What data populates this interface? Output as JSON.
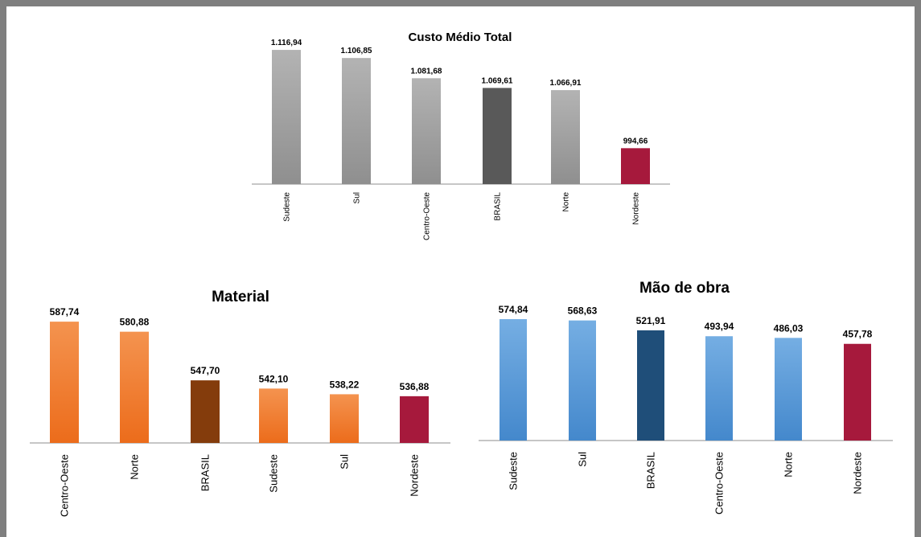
{
  "chart_data": [
    {
      "type": "bar",
      "title": "Custo Médio Total",
      "categories": [
        "Sudeste",
        "Sul",
        "Centro-Oeste",
        "BRASIL",
        "Norte",
        "Nordeste"
      ],
      "values": [
        1116.94,
        1106.85,
        1081.68,
        1069.61,
        1066.91,
        994.66
      ],
      "labels": [
        "1.116,94",
        "1.106,85",
        "1.081,68",
        "1.069,61",
        "1.066,91",
        "994,66"
      ],
      "colors": [
        "#a6a6a6",
        "#a6a6a6",
        "#a6a6a6",
        "#595959",
        "#a6a6a6",
        "#a6193c"
      ],
      "ylim": [
        950,
        1130
      ],
      "grid": false
    },
    {
      "type": "bar",
      "title": "Material",
      "categories": [
        "Centro-Oeste",
        "Norte",
        "BRASIL",
        "Sudeste",
        "Sul",
        "Nordeste"
      ],
      "values": [
        587.74,
        580.88,
        547.7,
        542.1,
        538.22,
        536.88
      ],
      "labels": [
        "587,74",
        "580,88",
        "547,70",
        "542,10",
        "538,22",
        "536,88"
      ],
      "colors": [
        "#f07b2b",
        "#f07b2b",
        "#843c0c",
        "#f07b2b",
        "#f07b2b",
        "#a6193c"
      ],
      "ylim": [
        505,
        590
      ],
      "grid": false
    },
    {
      "type": "bar",
      "title": "Mão de obra",
      "categories": [
        "Sudeste",
        "Sul",
        "BRASIL",
        "Centro-Oeste",
        "Norte",
        "Nordeste"
      ],
      "values": [
        574.84,
        568.63,
        521.91,
        493.94,
        486.03,
        457.78
      ],
      "labels": [
        "574,84",
        "568,63",
        "521,91",
        "493,94",
        "486,03",
        "457,78"
      ],
      "colors": [
        "#5b9bd5",
        "#5b9bd5",
        "#1f4e79",
        "#5b9bd5",
        "#5b9bd5",
        "#a6193c"
      ],
      "ylim": [
        0,
        590
      ],
      "grid": false
    }
  ]
}
